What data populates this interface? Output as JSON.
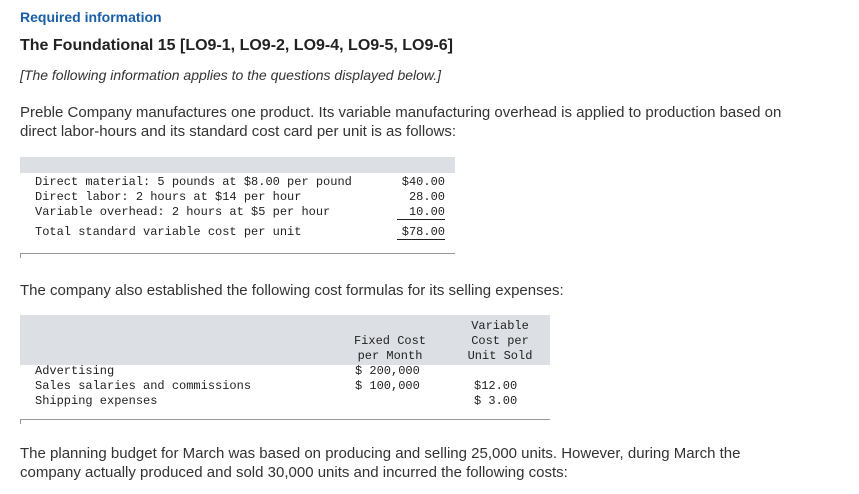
{
  "header": {
    "required": "Required information",
    "title": "The Foundational 15 [LO9-1, LO9-2, LO9-4, LO9-5, LO9-6]",
    "note": "[The following information applies to the questions displayed below.]"
  },
  "intro": {
    "line1": "Preble Company manufactures one product. Its variable manufacturing overhead is applied to production based on",
    "line2": "direct labor-hours and its standard cost card per unit is as follows:"
  },
  "cost_card": {
    "rows": [
      {
        "label": "Direct material: 5 pounds at $8.00 per pound",
        "value": "$40.00"
      },
      {
        "label": "Direct labor: 2 hours at $14 per hour",
        "value": "28.00"
      },
      {
        "label": "Variable overhead: 2 hours at $5 per hour",
        "value": "10.00"
      }
    ],
    "total": {
      "label": "Total standard variable cost per unit",
      "value": "$78.00"
    }
  },
  "selling_intro": "The company also established the following cost formulas for its selling expenses:",
  "selling": {
    "col_fixed": [
      "Fixed Cost",
      "per Month"
    ],
    "col_variable": [
      "Variable",
      "Cost per",
      "Unit Sold"
    ],
    "rows": [
      {
        "label": "Advertising",
        "fixed": "$ 200,000",
        "variable": ""
      },
      {
        "label": "Sales salaries and commissions",
        "fixed": "$ 100,000",
        "variable": "$12.00"
      },
      {
        "label": "Shipping expenses",
        "fixed": "",
        "variable": "$ 3.00"
      }
    ]
  },
  "planning": {
    "line1": "The planning budget for March was based on producing and selling 25,000 units. However, during March the",
    "line2": "company actually produced and sold 30,000 units and incurred the following costs:"
  }
}
